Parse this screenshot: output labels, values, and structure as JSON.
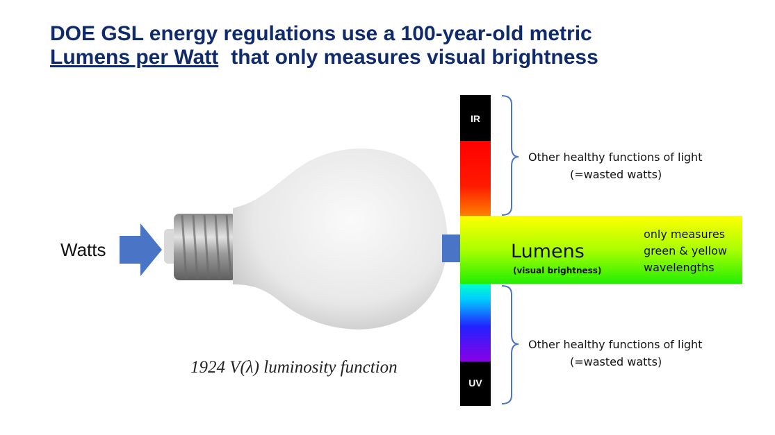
{
  "title": {
    "line1": "DOE GSL energy regulations use a 100-year-old metric",
    "line2_link": "Lumens per Watt",
    "line2_rest": "that only measures visual brightness"
  },
  "input_label": "Watts",
  "spectrum": {
    "top_label": "IR",
    "bottom_label": "UV"
  },
  "upper_note": {
    "line1": "Other healthy functions of light",
    "line2": "(=wasted watts)"
  },
  "output": {
    "label": "Lumens",
    "sublabel": "(visual brightness)",
    "note": [
      "only measures",
      "green & yellow",
      "wavelengths"
    ]
  },
  "lower_note": {
    "line1": "Other healthy functions of light",
    "line2": "(=wasted watts)"
  },
  "caption": "1924 V(λ) luminosity function"
}
